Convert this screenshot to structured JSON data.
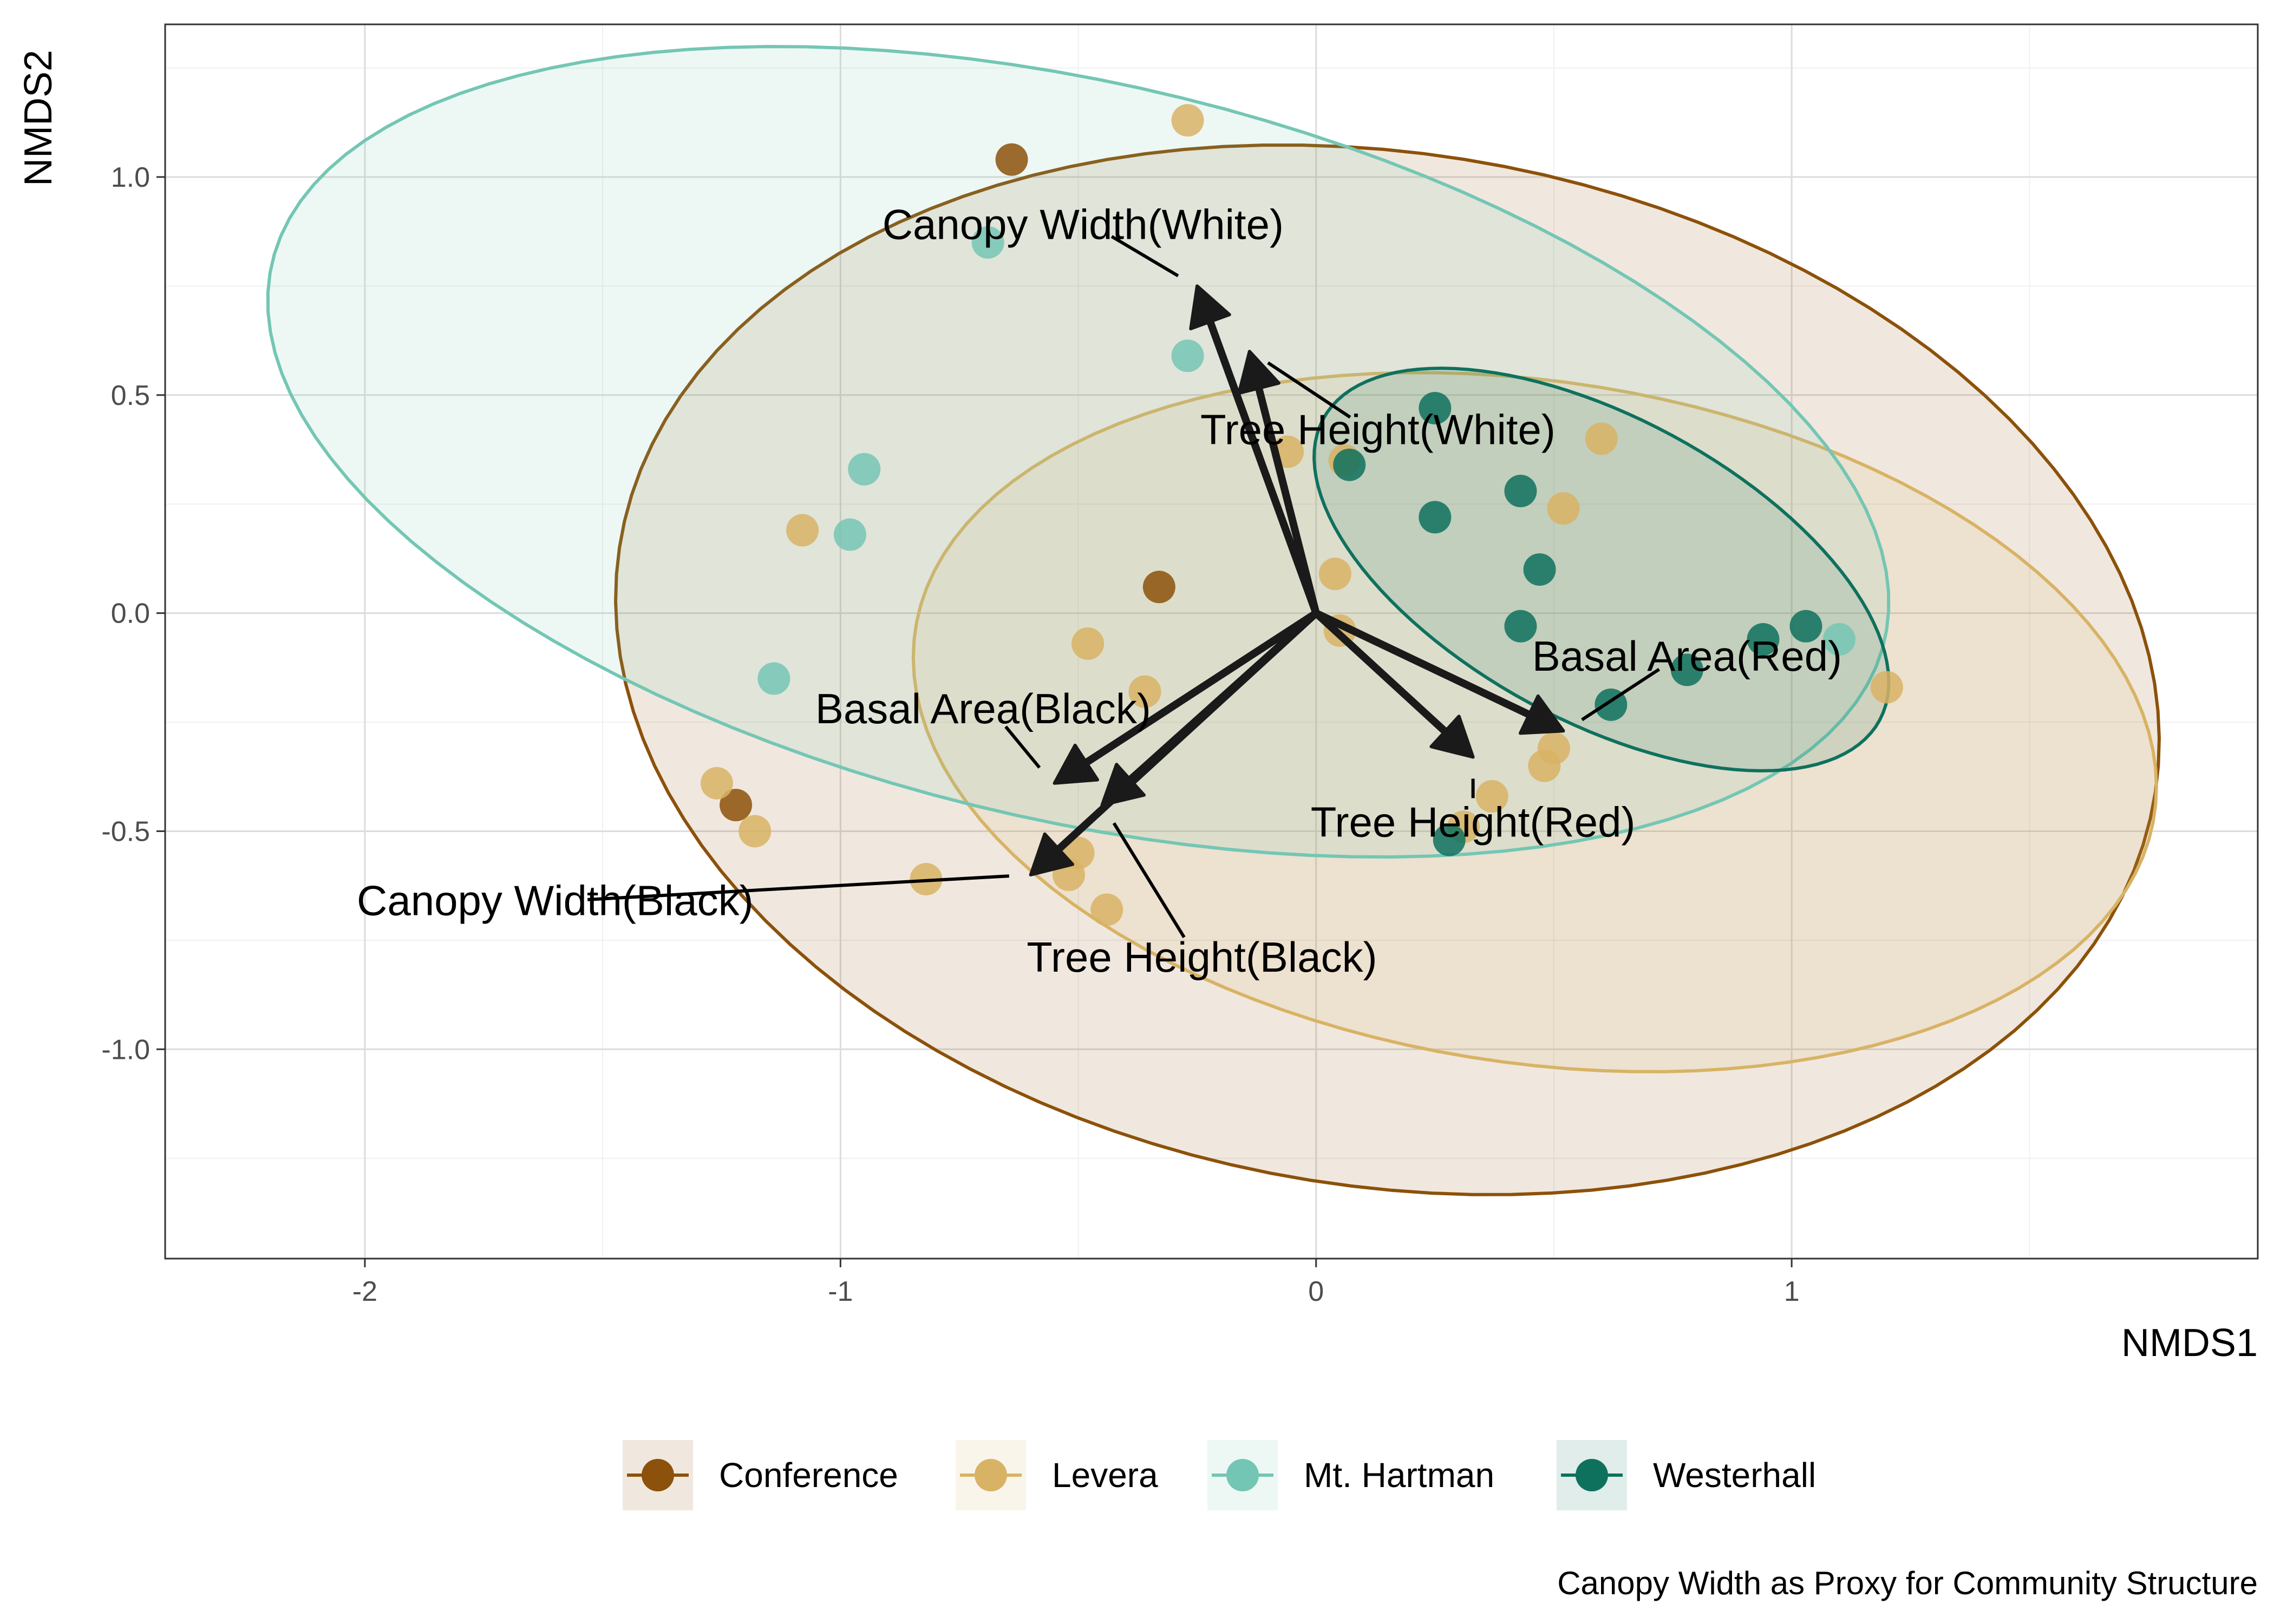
{
  "chart_data": {
    "type": "scatter",
    "title": "",
    "xlabel": "NMDS1",
    "ylabel": "NMDS2",
    "caption": "Canopy Width as Proxy for Community Structure",
    "xlim": [
      -2.42,
      1.98
    ],
    "ylim": [
      -1.48,
      1.35
    ],
    "x_ticks": [
      -2,
      -1,
      0,
      1
    ],
    "x_tick_labels": [
      "-2",
      "-1",
      "0",
      "1"
    ],
    "y_ticks": [
      -1.0,
      -0.5,
      0.0,
      0.5,
      1.0
    ],
    "y_tick_labels": [
      "-1.0",
      "-0.5",
      "0.0",
      "0.5",
      "1.0"
    ],
    "grid": true,
    "legend_position": "bottom",
    "series": [
      {
        "name": "Conference",
        "color": "#8c510a",
        "points": [
          [
            -0.64,
            1.04
          ],
          [
            -0.33,
            0.06
          ],
          [
            -1.22,
            -0.44
          ]
        ],
        "ellipse": {
          "cx": 0.15,
          "cy": -0.13,
          "rx": 1.64,
          "ry": 1.18,
          "angle_deg": -12
        }
      },
      {
        "name": "Levera",
        "color": "#d8b365",
        "points": [
          [
            -0.27,
            1.13
          ],
          [
            -1.08,
            0.19
          ],
          [
            -0.48,
            -0.07
          ],
          [
            -0.36,
            -0.18
          ],
          [
            -1.26,
            -0.39
          ],
          [
            -1.18,
            -0.5
          ],
          [
            -0.82,
            -0.61
          ],
          [
            -0.5,
            -0.55
          ],
          [
            -0.52,
            -0.6
          ],
          [
            -0.44,
            -0.68
          ],
          [
            -0.06,
            0.37
          ],
          [
            0.06,
            0.35
          ],
          [
            0.04,
            0.09
          ],
          [
            0.05,
            -0.04
          ],
          [
            0.6,
            0.4
          ],
          [
            0.52,
            0.24
          ],
          [
            0.5,
            -0.31
          ],
          [
            0.48,
            -0.35
          ],
          [
            0.37,
            -0.42
          ],
          [
            0.31,
            -0.49
          ],
          [
            1.2,
            -0.17
          ]
        ],
        "ellipse": {
          "cx": 0.46,
          "cy": -0.25,
          "rx": 1.32,
          "ry": 0.78,
          "angle_deg": -10
        }
      },
      {
        "name": "Mt. Hartman",
        "color": "#74c6b4",
        "points": [
          [
            -0.69,
            0.85
          ],
          [
            -0.27,
            0.59
          ],
          [
            -0.95,
            0.33
          ],
          [
            -0.98,
            0.18
          ],
          [
            -1.14,
            -0.15
          ],
          [
            1.1,
            -0.06
          ]
        ],
        "ellipse": {
          "cx": -0.5,
          "cy": 0.37,
          "rx": 1.75,
          "ry": 0.84,
          "angle_deg": -15
        }
      },
      {
        "name": "Westerhall",
        "color": "#0e715e",
        "points": [
          [
            0.25,
            0.47
          ],
          [
            0.07,
            0.34
          ],
          [
            0.25,
            0.22
          ],
          [
            0.43,
            0.28
          ],
          [
            0.47,
            0.1
          ],
          [
            0.43,
            -0.03
          ],
          [
            0.78,
            -0.13
          ],
          [
            0.62,
            -0.21
          ],
          [
            0.94,
            -0.06
          ],
          [
            1.03,
            -0.03
          ],
          [
            0.28,
            -0.52
          ]
        ],
        "ellipse": {
          "cx": 0.6,
          "cy": 0.1,
          "rx": 0.68,
          "ry": 0.34,
          "angle_deg": -32
        }
      }
    ],
    "vectors": [
      {
        "label": "Canopy Width(White)",
        "x": -0.25,
        "y": 0.75,
        "label_x": -0.49,
        "label_y": 0.89
      },
      {
        "label": "Tree Height(White)",
        "x": -0.14,
        "y": 0.6,
        "label_x": 0.13,
        "label_y": 0.42
      },
      {
        "label": "Basal Area(Black)",
        "x": -0.55,
        "y": -0.39,
        "label_x": -0.7,
        "label_y": -0.22
      },
      {
        "label": "Tree Height(Black)",
        "x": -0.45,
        "y": -0.44,
        "label_x": -0.24,
        "label_y": -0.79
      },
      {
        "label": "Canopy Width(Black)",
        "x": -0.6,
        "y": -0.6,
        "label_x": -1.6,
        "label_y": -0.66
      },
      {
        "label": "Tree Height(Red)",
        "x": 0.33,
        "y": -0.33,
        "label_x": 0.33,
        "label_y": -0.48
      },
      {
        "label": "Basal Area(Red)",
        "x": 0.52,
        "y": -0.27,
        "label_x": 0.78,
        "label_y": -0.1
      }
    ]
  }
}
